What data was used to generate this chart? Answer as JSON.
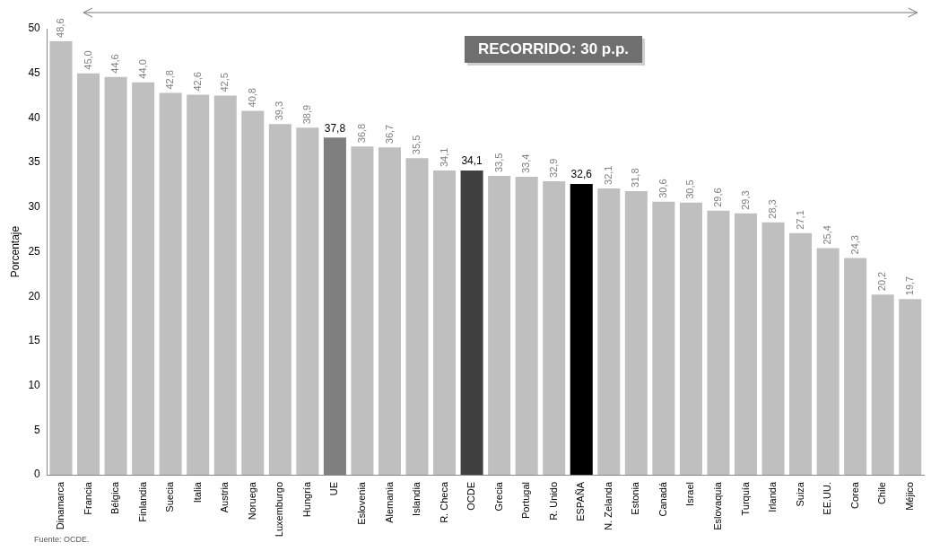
{
  "chart_data": {
    "type": "bar",
    "ylabel": "Porcentaje",
    "categories": [
      "Dinamarca",
      "Francia",
      "Bélgica",
      "Finlandia",
      "Suecia",
      "Italia",
      "Austria",
      "Noruega",
      "Luxemburgo",
      "Hungría",
      "UE",
      "Eslovenia",
      "Alemania",
      "Islandia",
      "R. Checa",
      "OCDE",
      "Grecia",
      "Portugal",
      "R. Unido",
      "ESPAÑA",
      "N. Zelanda",
      "Estonia",
      "Canadá",
      "Israel",
      "Eslovaquia",
      "Turquía",
      "Irlanda",
      "Suiza",
      "EE.UU.",
      "Corea",
      "Chile",
      "Méjico"
    ],
    "values": [
      48.6,
      45.0,
      44.6,
      44.0,
      42.8,
      42.6,
      42.5,
      40.8,
      39.3,
      38.9,
      37.8,
      36.8,
      36.7,
      35.5,
      34.1,
      34.1,
      33.5,
      33.4,
      32.9,
      32.6,
      32.1,
      31.8,
      30.6,
      30.5,
      29.6,
      29.3,
      28.3,
      27.1,
      25.4,
      24.3,
      20.2,
      19.7
    ],
    "value_labels": [
      "48,6",
      "45,0",
      "44,6",
      "44,0",
      "42,8",
      "42,6",
      "42,5",
      "40,8",
      "39,3",
      "38,9",
      "37,8",
      "36,8",
      "36,7",
      "35,5",
      "34,1",
      "34,1",
      "33,5",
      "33,4",
      "32,9",
      "32,6",
      "32,1",
      "31,8",
      "30,6",
      "30,5",
      "29,6",
      "29,3",
      "28,3",
      "27,1",
      "25,4",
      "24,3",
      "20,2",
      "19,7"
    ],
    "colors": [
      "#bfbfbf",
      "#bfbfbf",
      "#bfbfbf",
      "#bfbfbf",
      "#bfbfbf",
      "#bfbfbf",
      "#bfbfbf",
      "#bfbfbf",
      "#bfbfbf",
      "#bfbfbf",
      "#7f7f7f",
      "#bfbfbf",
      "#bfbfbf",
      "#bfbfbf",
      "#bfbfbf",
      "#404040",
      "#bfbfbf",
      "#bfbfbf",
      "#bfbfbf",
      "#000000",
      "#bfbfbf",
      "#bfbfbf",
      "#bfbfbf",
      "#bfbfbf",
      "#bfbfbf",
      "#bfbfbf",
      "#bfbfbf",
      "#bfbfbf",
      "#bfbfbf",
      "#bfbfbf",
      "#bfbfbf",
      "#bfbfbf"
    ],
    "ylim": [
      0,
      50
    ],
    "yticks": [
      0,
      5,
      10,
      15,
      20,
      25,
      30,
      35,
      40,
      45,
      50
    ],
    "grid": false,
    "legend": false,
    "annotations": [
      "RECORRIDO: 30 p.p.",
      "Fuente: OCDE."
    ]
  }
}
